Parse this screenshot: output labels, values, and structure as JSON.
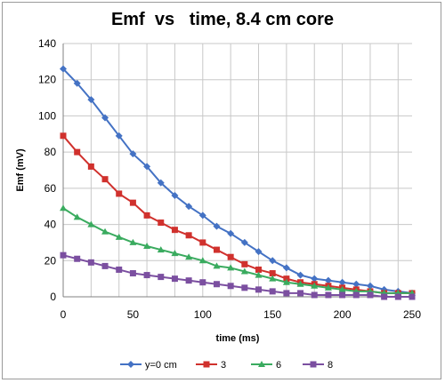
{
  "chart_data": {
    "type": "line",
    "title": "Emf  vs   time, 8.4 cm core",
    "xlabel": "time (ms)",
    "ylabel": "Emf (mV)",
    "xlim": [
      0,
      250
    ],
    "ylim": [
      0,
      140
    ],
    "x_ticks": [
      "0",
      "50",
      "100",
      "150",
      "200",
      "250"
    ],
    "y_ticks": [
      "0",
      "20",
      "40",
      "60",
      "80",
      "100",
      "120",
      "140"
    ],
    "grid": true,
    "legend_position": "bottom",
    "x": [
      0,
      10,
      20,
      30,
      40,
      50,
      60,
      70,
      80,
      90,
      100,
      110,
      120,
      130,
      140,
      150,
      160,
      170,
      180,
      190,
      200,
      210,
      220,
      230,
      240,
      250
    ],
    "series": [
      {
        "name": "y=0 cm",
        "color": "#4472c4",
        "marker": "diamond",
        "values": [
          126,
          118,
          109,
          99,
          89,
          79,
          72,
          63,
          56,
          50,
          45,
          39,
          35,
          30,
          25,
          20,
          16,
          12,
          10,
          9,
          8,
          7,
          6,
          4,
          3,
          2
        ]
      },
      {
        "name": "3",
        "color": "#d0312d",
        "marker": "square",
        "values": [
          89,
          80,
          72,
          65,
          57,
          52,
          45,
          41,
          37,
          34,
          30,
          26,
          22,
          18,
          15,
          13,
          10,
          8,
          7,
          6,
          5,
          4,
          3,
          2,
          2,
          2
        ]
      },
      {
        "name": "6",
        "color": "#3aab5f",
        "marker": "triangle",
        "values": [
          49,
          44,
          40,
          36,
          33,
          30,
          28,
          26,
          24,
          22,
          20,
          17,
          16,
          14,
          12,
          10,
          8,
          7,
          6,
          5,
          4,
          3,
          3,
          2,
          2,
          2
        ]
      },
      {
        "name": "8",
        "color": "#7b4fa0",
        "marker": "square",
        "values": [
          23,
          21,
          19,
          17,
          15,
          13,
          12,
          11,
          10,
          9,
          8,
          7,
          6,
          5,
          4,
          3,
          2,
          2,
          1,
          1,
          1,
          1,
          1,
          0,
          0,
          0
        ]
      }
    ]
  }
}
